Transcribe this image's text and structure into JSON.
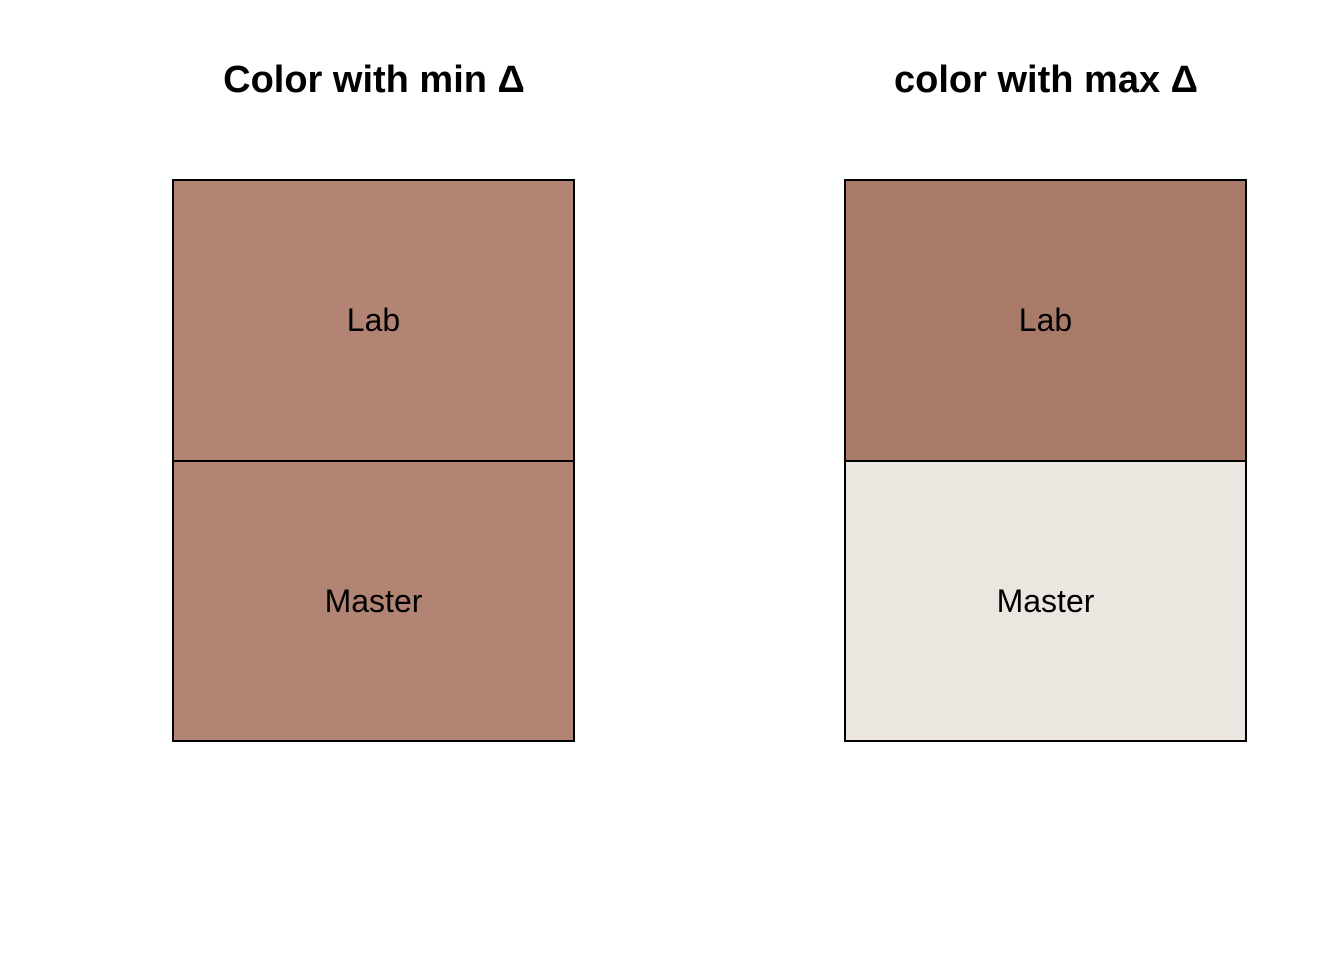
{
  "panels": [
    {
      "title": "Color with min Δ",
      "swatches": [
        {
          "label": "Lab",
          "color": "#b28473"
        },
        {
          "label": "Master",
          "color": "#b28473"
        }
      ]
    },
    {
      "title": "color with max Δ",
      "swatches": [
        {
          "label": "Lab",
          "color": "#a87b68"
        },
        {
          "label": "Master",
          "color": "#ebe6e0"
        }
      ]
    }
  ]
}
